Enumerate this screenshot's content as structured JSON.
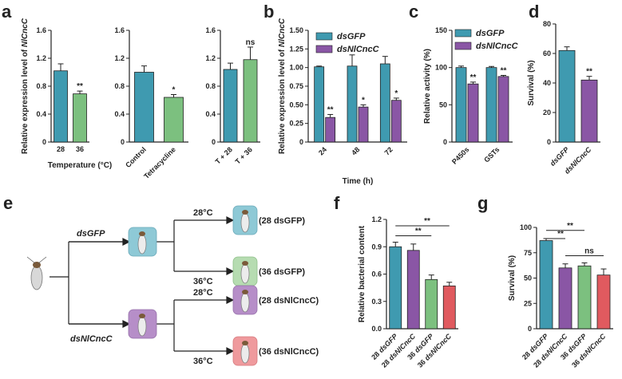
{
  "colors": {
    "teal": "#3f9ab0",
    "green": "#7cc07f",
    "purple": "#8a56a5",
    "red": "#e05a5f",
    "axis": "#222222",
    "box_teal": "#8ec9d6",
    "box_purple": "#b68ec8",
    "box_green": "#b6dcb1",
    "box_red": "#ef9a9d"
  },
  "panel_labels": {
    "a": "a",
    "b": "b",
    "c": "c",
    "d": "d",
    "e": "e",
    "f": "f",
    "g": "g"
  },
  "chart_data": [
    {
      "id": "a1",
      "type": "bar",
      "panel": "a",
      "ylabel": "Relative expression level of NlCncC",
      "xlabel": "Temperature (°C)",
      "ylim": [
        0,
        1.6
      ],
      "yticks": [
        "0",
        "0.4",
        "0.8",
        "1.2",
        "1.6"
      ],
      "categories": [
        "28",
        "36"
      ],
      "values": [
        1.02,
        0.69
      ],
      "errors": [
        0.1,
        0.04
      ],
      "colors": [
        "teal",
        "green"
      ],
      "sig": [
        "",
        "**"
      ]
    },
    {
      "id": "a2",
      "type": "bar",
      "panel": "a",
      "ylim": [
        0,
        1.6
      ],
      "yticks": [
        "0",
        "0.4",
        "0.8",
        "1.2",
        "1.6"
      ],
      "categories": [
        "Control",
        "Tetracycline"
      ],
      "values": [
        1.0,
        0.64
      ],
      "errors": [
        0.09,
        0.04
      ],
      "colors": [
        "teal",
        "green"
      ],
      "sig": [
        "",
        "*"
      ]
    },
    {
      "id": "a3",
      "type": "bar",
      "panel": "a",
      "ylim": [
        0,
        1.6
      ],
      "yticks": [
        "0",
        "0.4",
        "0.8",
        "1.2",
        "1.6"
      ],
      "categories": [
        "T + 28",
        "T + 36"
      ],
      "values": [
        1.04,
        1.18
      ],
      "errors": [
        0.09,
        0.18
      ],
      "colors": [
        "teal",
        "green"
      ],
      "sig": [
        "",
        "ns"
      ]
    },
    {
      "id": "b",
      "type": "bar",
      "panel": "b",
      "ylabel": "Relative expression level of NlCncC",
      "xlabel": "Time (h)",
      "ylim": [
        0,
        1.5
      ],
      "yticks": [
        "0",
        "0.25",
        "0.50",
        "0.75",
        "1.00",
        "1.25",
        "1.50"
      ],
      "categories": [
        "24",
        "48",
        "72"
      ],
      "series": [
        {
          "name": "dsGFP",
          "color": "teal",
          "values": [
            1.01,
            1.02,
            1.05
          ],
          "errors": [
            0.01,
            0.15,
            0.1
          ],
          "sig": [
            "",
            "",
            ""
          ]
        },
        {
          "name": "dsNlCncC",
          "color": "purple",
          "values": [
            0.33,
            0.47,
            0.56
          ],
          "errors": [
            0.04,
            0.03,
            0.03
          ],
          "sig": [
            "**",
            "*",
            "*"
          ]
        }
      ],
      "legend": "top-left"
    },
    {
      "id": "c",
      "type": "bar",
      "panel": "c",
      "ylabel": "Relative activity (%)",
      "ylim": [
        0,
        150
      ],
      "yticks": [
        "0",
        "50",
        "100",
        "150"
      ],
      "categories": [
        "P450s",
        "GSTs"
      ],
      "series": [
        {
          "name": "dsGFP",
          "color": "teal",
          "values": [
            100,
            100
          ],
          "errors": [
            2,
            1.5
          ],
          "sig": [
            "",
            ""
          ]
        },
        {
          "name": "dsNlCncC",
          "color": "purple",
          "values": [
            78,
            88
          ],
          "errors": [
            2.5,
            1.5
          ],
          "sig": [
            "**",
            "**"
          ]
        }
      ],
      "legend": "top"
    },
    {
      "id": "d",
      "type": "bar",
      "panel": "d",
      "ylabel": "Survival (%)",
      "ylim": [
        0,
        80
      ],
      "yticks": [
        "0",
        "20",
        "40",
        "60",
        "80"
      ],
      "categories": [
        "dsGFP",
        "dsNlCncC"
      ],
      "values": [
        62,
        42
      ],
      "errors": [
        2.5,
        2.5
      ],
      "colors": [
        "teal",
        "purple"
      ],
      "sig": [
        "",
        "**"
      ]
    },
    {
      "id": "f",
      "type": "bar",
      "panel": "f",
      "ylabel": "Relative bacterial content",
      "ylim": [
        0,
        1.2
      ],
      "yticks": [
        "0.0",
        "0.3",
        "0.6",
        "0.9",
        "1.2"
      ],
      "categories": [
        "28 dsGFP",
        "28 dsNlCncC",
        "36 dsGFP",
        "36 dsNlCncC"
      ],
      "values": [
        0.9,
        0.86,
        0.54,
        0.47
      ],
      "errors": [
        0.05,
        0.07,
        0.05,
        0.04
      ],
      "colors": [
        "teal",
        "purple",
        "green",
        "red"
      ],
      "brackets": [
        {
          "from": 0,
          "to": 2,
          "label": "**"
        },
        {
          "from": 0,
          "to": 3,
          "label": "**"
        }
      ]
    },
    {
      "id": "g",
      "type": "bar",
      "panel": "g",
      "ylabel": "Survival (%)",
      "ylim": [
        0,
        100
      ],
      "yticks": [
        "0",
        "25",
        "50",
        "75",
        "100"
      ],
      "categories": [
        "28 dsGFP",
        "28 dsNlCncC",
        "36 dsGFP",
        "36 dsNlCncC"
      ],
      "values": [
        87,
        60,
        62,
        53
      ],
      "errors": [
        2,
        4,
        3,
        6
      ],
      "colors": [
        "teal",
        "purple",
        "green",
        "red"
      ],
      "brackets": [
        {
          "from": 0,
          "to": 1,
          "label": "**"
        },
        {
          "from": 0,
          "to": 2,
          "label": "**"
        },
        {
          "from": 1,
          "to": 3,
          "label": "ns"
        }
      ]
    }
  ],
  "diagram_e": {
    "branch_top": "dsGFP",
    "branch_bottom": "dsNlCncC",
    "temp_28": "28°C",
    "temp_36": "36°C",
    "outcomes": [
      "(28 dsGFP)",
      "(36 dsGFP)",
      "(28 dsNlCncC)",
      "(36 dsNlCncC)"
    ]
  }
}
